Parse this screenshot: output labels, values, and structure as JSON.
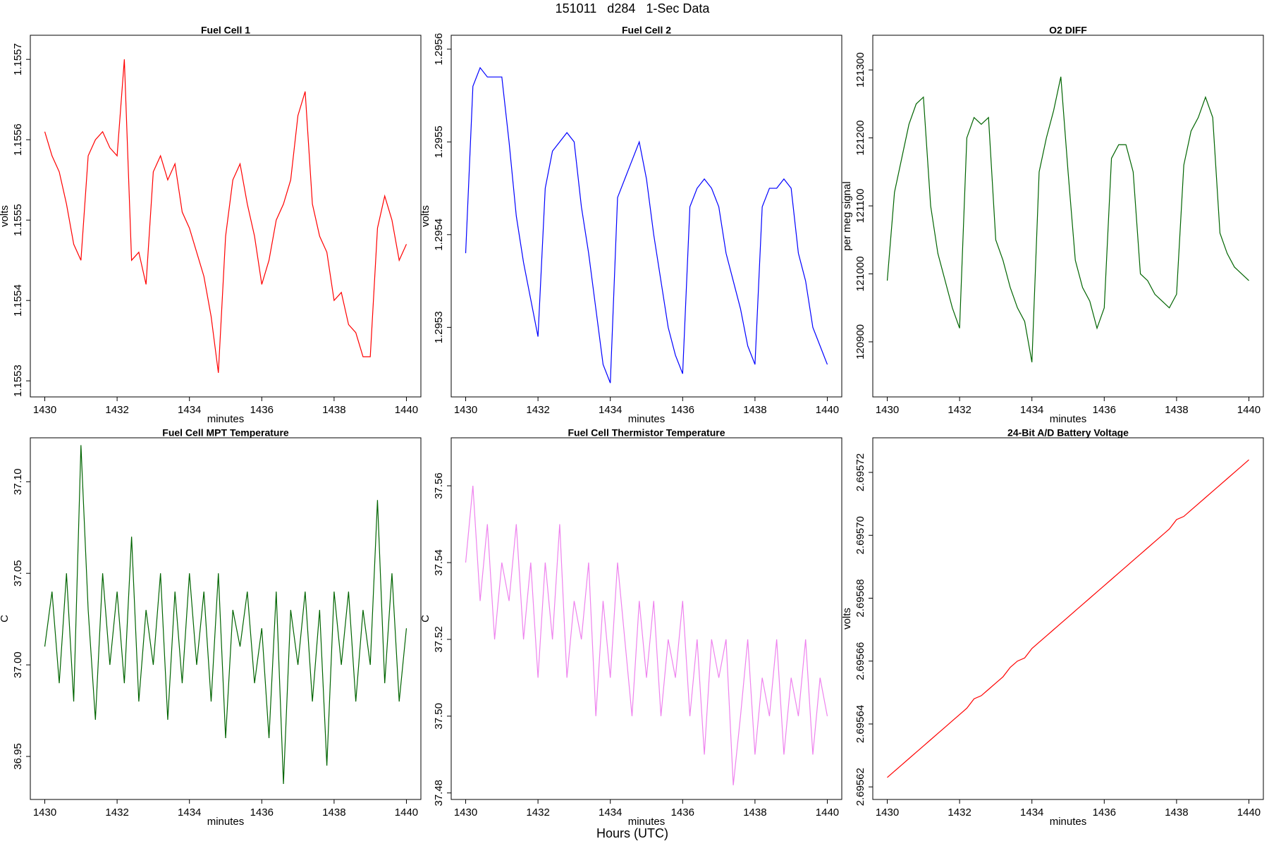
{
  "title": "151011   d284   1-Sec Data",
  "footer_label": "Hours (UTC)",
  "chart_data": [
    {
      "type": "line",
      "title": "Fuel Cell 1",
      "xlabel": "minutes",
      "ylabel": "volts",
      "color": "#ff0000",
      "x": [
        1430,
        1430.2,
        1430.4,
        1430.6,
        1430.8,
        1431,
        1431.2,
        1431.4,
        1431.6,
        1431.8,
        1432,
        1432.2,
        1432.4,
        1432.6,
        1432.8,
        1433,
        1433.2,
        1433.4,
        1433.6,
        1433.8,
        1434,
        1434.2,
        1434.4,
        1434.6,
        1434.8,
        1435,
        1435.2,
        1435.4,
        1435.6,
        1435.8,
        1436,
        1436.2,
        1436.4,
        1436.6,
        1436.8,
        1437,
        1437.2,
        1437.4,
        1437.6,
        1437.8,
        1438,
        1438.2,
        1438.4,
        1438.6,
        1438.8,
        1439,
        1439.2,
        1439.4,
        1439.6,
        1439.8,
        1440
      ],
      "values": [
        1.15561,
        1.15558,
        1.15556,
        1.15552,
        1.15547,
        1.15545,
        1.15558,
        1.1556,
        1.15561,
        1.15559,
        1.15558,
        1.1557,
        1.15545,
        1.15546,
        1.15542,
        1.15556,
        1.15558,
        1.15555,
        1.15557,
        1.15551,
        1.15549,
        1.15546,
        1.15543,
        1.15538,
        1.15531,
        1.15548,
        1.15555,
        1.15557,
        1.15552,
        1.15548,
        1.15542,
        1.15545,
        1.1555,
        1.15552,
        1.15555,
        1.15563,
        1.15566,
        1.15552,
        1.15548,
        1.15546,
        1.1554,
        1.15541,
        1.15537,
        1.15536,
        1.15533,
        1.15533,
        1.15549,
        1.15553,
        1.1555,
        1.15545,
        1.15547
      ],
      "xlim": [
        1429.6,
        1440.4
      ],
      "ylim": [
        1.15528,
        1.15573
      ],
      "xticks": [
        1430,
        1432,
        1434,
        1436,
        1438,
        1440
      ],
      "yticks": [
        1.1553,
        1.1554,
        1.1555,
        1.1556,
        1.1557
      ]
    },
    {
      "type": "line",
      "title": "Fuel Cell 2",
      "xlabel": "minutes",
      "ylabel": "volts",
      "color": "#0000ff",
      "x": [
        1430,
        1430.2,
        1430.4,
        1430.6,
        1430.8,
        1431,
        1431.2,
        1431.4,
        1431.6,
        1431.8,
        1432,
        1432.2,
        1432.4,
        1432.6,
        1432.8,
        1433,
        1433.2,
        1433.4,
        1433.6,
        1433.8,
        1434,
        1434.2,
        1434.4,
        1434.6,
        1434.8,
        1435,
        1435.2,
        1435.4,
        1435.6,
        1435.8,
        1436,
        1436.2,
        1436.4,
        1436.6,
        1436.8,
        1437,
        1437.2,
        1437.4,
        1437.6,
        1437.8,
        1438,
        1438.2,
        1438.4,
        1438.6,
        1438.8,
        1439,
        1439.2,
        1439.4,
        1439.6,
        1439.8,
        1440
      ],
      "values": [
        1.29538,
        1.29556,
        1.29558,
        1.29557,
        1.29557,
        1.29557,
        1.2955,
        1.29542,
        1.29537,
        1.29533,
        1.29529,
        1.29545,
        1.29549,
        1.2955,
        1.29551,
        1.2955,
        1.29543,
        1.29538,
        1.29532,
        1.29526,
        1.29524,
        1.29544,
        1.29546,
        1.29548,
        1.2955,
        1.29546,
        1.2954,
        1.29535,
        1.2953,
        1.29527,
        1.29525,
        1.29543,
        1.29545,
        1.29546,
        1.29545,
        1.29543,
        1.29538,
        1.29535,
        1.29532,
        1.29528,
        1.29526,
        1.29543,
        1.29545,
        1.29545,
        1.29546,
        1.29545,
        1.29538,
        1.29535,
        1.2953,
        1.29528,
        1.29526
      ],
      "xlim": [
        1429.6,
        1440.4
      ],
      "ylim": [
        1.295225,
        1.295615
      ],
      "xticks": [
        1430,
        1432,
        1434,
        1436,
        1438,
        1440
      ],
      "yticks": [
        1.2953,
        1.2954,
        1.2955,
        1.2956
      ]
    },
    {
      "type": "line",
      "title": "O2 DIFF",
      "xlabel": "minutes",
      "ylabel": "per meg signal",
      "color": "#006400",
      "x": [
        1430,
        1430.2,
        1430.4,
        1430.6,
        1430.8,
        1431,
        1431.2,
        1431.4,
        1431.6,
        1431.8,
        1432,
        1432.2,
        1432.4,
        1432.6,
        1432.8,
        1433,
        1433.2,
        1433.4,
        1433.6,
        1433.8,
        1434,
        1434.2,
        1434.4,
        1434.6,
        1434.8,
        1435,
        1435.2,
        1435.4,
        1435.6,
        1435.8,
        1436,
        1436.2,
        1436.4,
        1436.6,
        1436.8,
        1437,
        1437.2,
        1437.4,
        1437.6,
        1437.8,
        1438,
        1438.2,
        1438.4,
        1438.6,
        1438.8,
        1439,
        1439.2,
        1439.4,
        1439.6,
        1439.8,
        1440
      ],
      "values": [
        120990,
        121120,
        121170,
        121220,
        121250,
        121260,
        121100,
        121030,
        120990,
        120950,
        120920,
        121200,
        121230,
        121220,
        121230,
        121050,
        121020,
        120980,
        120950,
        120930,
        120870,
        121150,
        121200,
        121240,
        121290,
        121150,
        121020,
        120980,
        120960,
        120920,
        120950,
        121170,
        121190,
        121190,
        121150,
        121000,
        120990,
        120970,
        120960,
        120950,
        120970,
        121160,
        121210,
        121230,
        121260,
        121230,
        121060,
        121030,
        121010,
        121000,
        120990
      ],
      "xlim": [
        1429.6,
        1440.4
      ],
      "ylim": [
        120819,
        121351
      ],
      "xticks": [
        1430,
        1432,
        1434,
        1436,
        1438,
        1440
      ],
      "yticks": [
        120900,
        121000,
        121100,
        121200,
        121300
      ]
    },
    {
      "type": "line",
      "title": "Fuel Cell MPT Temperature",
      "xlabel": "minutes",
      "ylabel": "C",
      "color": "#006400",
      "x": [
        1430,
        1430.2,
        1430.4,
        1430.6,
        1430.8,
        1431,
        1431.2,
        1431.4,
        1431.6,
        1431.8,
        1432,
        1432.2,
        1432.4,
        1432.6,
        1432.8,
        1433,
        1433.2,
        1433.4,
        1433.6,
        1433.8,
        1434,
        1434.2,
        1434.4,
        1434.6,
        1434.8,
        1435,
        1435.2,
        1435.4,
        1435.6,
        1435.8,
        1436,
        1436.2,
        1436.4,
        1436.6,
        1436.8,
        1437,
        1437.2,
        1437.4,
        1437.6,
        1437.8,
        1438,
        1438.2,
        1438.4,
        1438.6,
        1438.8,
        1439,
        1439.2,
        1439.4,
        1439.6,
        1439.8,
        1440
      ],
      "values": [
        37.01,
        37.04,
        36.99,
        37.05,
        36.98,
        37.12,
        37.03,
        36.97,
        37.05,
        37.0,
        37.04,
        36.99,
        37.07,
        36.98,
        37.03,
        37.0,
        37.05,
        36.97,
        37.04,
        36.99,
        37.05,
        37.0,
        37.04,
        36.98,
        37.05,
        36.96,
        37.03,
        37.01,
        37.04,
        36.99,
        37.02,
        36.96,
        37.04,
        36.935,
        37.03,
        37.0,
        37.04,
        36.98,
        37.03,
        36.945,
        37.04,
        37.0,
        37.04,
        36.98,
        37.03,
        37.0,
        37.09,
        36.99,
        37.05,
        36.98,
        37.02
      ],
      "xlim": [
        1429.6,
        1440.4
      ],
      "ylim": [
        36.9265,
        37.124
      ],
      "xticks": [
        1430,
        1432,
        1434,
        1436,
        1438,
        1440
      ],
      "yticks": [
        36.95,
        {
          "value": 37,
          "label": "37.00"
        },
        37.05,
        {
          "value": 37.1,
          "label": "37.10"
        }
      ]
    },
    {
      "type": "line",
      "title": "Fuel Cell Thermistor Temperature",
      "xlabel": "minutes",
      "ylabel": "C",
      "color": "#ee82ee",
      "x": [
        1430,
        1430.2,
        1430.4,
        1430.6,
        1430.8,
        1431,
        1431.2,
        1431.4,
        1431.6,
        1431.8,
        1432,
        1432.2,
        1432.4,
        1432.6,
        1432.8,
        1433,
        1433.2,
        1433.4,
        1433.6,
        1433.8,
        1434,
        1434.2,
        1434.4,
        1434.6,
        1434.8,
        1435,
        1435.2,
        1435.4,
        1435.6,
        1435.8,
        1436,
        1436.2,
        1436.4,
        1436.6,
        1436.8,
        1437,
        1437.2,
        1437.4,
        1437.6,
        1437.8,
        1438,
        1438.2,
        1438.4,
        1438.6,
        1438.8,
        1439,
        1439.2,
        1439.4,
        1439.6,
        1439.8,
        1440
      ],
      "values": [
        37.54,
        37.56,
        37.53,
        37.55,
        37.52,
        37.54,
        37.53,
        37.55,
        37.52,
        37.54,
        37.51,
        37.54,
        37.52,
        37.55,
        37.51,
        37.53,
        37.52,
        37.54,
        37.5,
        37.53,
        37.51,
        37.54,
        37.52,
        37.5,
        37.53,
        37.51,
        37.53,
        37.5,
        37.52,
        37.51,
        37.53,
        37.5,
        37.52,
        37.49,
        37.52,
        37.51,
        37.52,
        37.482,
        37.5,
        37.52,
        37.49,
        37.51,
        37.5,
        37.52,
        37.49,
        37.51,
        37.5,
        37.52,
        37.49,
        37.51,
        37.5
      ],
      "xlim": [
        1429.6,
        1440.4
      ],
      "ylim": [
        37.4783,
        37.5725
      ],
      "xticks": [
        1430,
        1432,
        1434,
        1436,
        1438,
        1440
      ],
      "yticks": [
        37.48,
        {
          "value": 37.5,
          "label": "37.50"
        },
        37.52,
        37.54,
        37.56
      ]
    },
    {
      "type": "line",
      "title": "24-Bit A/D Battery Voltage",
      "xlabel": "minutes",
      "ylabel": "volts",
      "color": "#ff0000",
      "x": [
        1430,
        1430.2,
        1430.4,
        1430.6,
        1430.8,
        1431,
        1431.2,
        1431.4,
        1431.6,
        1431.8,
        1432,
        1432.2,
        1432.4,
        1432.6,
        1432.8,
        1433,
        1433.2,
        1433.4,
        1433.6,
        1433.8,
        1434,
        1434.2,
        1434.4,
        1434.6,
        1434.8,
        1435,
        1435.2,
        1435.4,
        1435.6,
        1435.8,
        1436,
        1436.2,
        1436.4,
        1436.6,
        1436.8,
        1437,
        1437.2,
        1437.4,
        1437.6,
        1437.8,
        1438,
        1438.2,
        1438.4,
        1438.6,
        1438.8,
        1439,
        1439.2,
        1439.4,
        1439.6,
        1439.8,
        1440
      ],
      "values": [
        2.695623,
        2.695625,
        2.695627,
        2.695629,
        2.695631,
        2.695633,
        2.695635,
        2.695637,
        2.695639,
        2.695641,
        2.695643,
        2.695645,
        2.695648,
        2.695649,
        2.695651,
        2.695653,
        2.695655,
        2.695658,
        2.69566,
        2.695661,
        2.695664,
        2.695666,
        2.695668,
        2.69567,
        2.695672,
        2.695674,
        2.695676,
        2.695678,
        2.69568,
        2.695682,
        2.695684,
        2.695686,
        2.695688,
        2.69569,
        2.695692,
        2.695694,
        2.695696,
        2.695698,
        2.6957,
        2.695702,
        2.695705,
        2.695706,
        2.695708,
        2.69571,
        2.695712,
        2.695714,
        2.695716,
        2.695718,
        2.69572,
        2.695722,
        2.695724
      ],
      "xlim": [
        1429.6,
        1440.4
      ],
      "ylim": [
        2.695616,
        2.695731
      ],
      "xticks": [
        1430,
        1432,
        1434,
        1436,
        1438,
        1440
      ],
      "yticks": [
        2.69562,
        2.69564,
        2.69566,
        2.69568,
        {
          "value": 2.6957,
          "label": "2.69570"
        },
        2.69572
      ]
    }
  ]
}
